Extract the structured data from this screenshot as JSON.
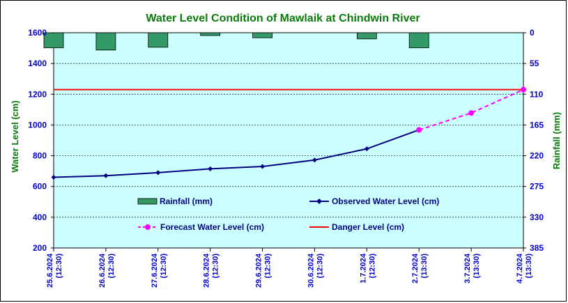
{
  "chart_data": {
    "type": "line",
    "title": "Water Level Condition of Mawlaik at Chindwin River",
    "ylabel": "Water Level (cm)",
    "y2label": "Rainfall (mm)",
    "ylim": [
      200,
      1600
    ],
    "yticks": [
      200,
      400,
      600,
      800,
      1000,
      1200,
      1400,
      1600
    ],
    "y2lim": [
      0,
      385
    ],
    "y2ticks": [
      0,
      55,
      110,
      165,
      220,
      275,
      330,
      385
    ],
    "y2_inverted": true,
    "grid": true,
    "categories": [
      [
        "25.6.2024",
        "(12:30)"
      ],
      [
        "26.6.2024",
        "(12:30)"
      ],
      [
        "27.6.2024",
        "(12:30)"
      ],
      [
        "28.6.2024",
        "(12:30)"
      ],
      [
        "29.6.2024",
        "(12:30)"
      ],
      [
        "30.6.2024",
        "(12:30)"
      ],
      [
        "1.7.2024",
        "(12:30)"
      ],
      [
        "2.7.2024",
        "(13:30)"
      ],
      [
        "3.7.2024",
        "(13:30)"
      ],
      [
        "4.7.2024",
        "(13:30)"
      ]
    ],
    "series": [
      {
        "name": "Rainfall (mm)",
        "kind": "bar",
        "axis": "right",
        "color": "#339966",
        "values": [
          27,
          31,
          26,
          5,
          9,
          null,
          11,
          27,
          null,
          null
        ]
      },
      {
        "name": "Observed Water Level (cm)",
        "kind": "line",
        "axis": "left",
        "color": "#000080",
        "values": [
          660,
          670,
          690,
          715,
          730,
          772,
          845,
          968,
          null,
          null
        ]
      },
      {
        "name": "Forecast Water Level (cm)",
        "kind": "dashed-line",
        "axis": "left",
        "color": "#ff00ff",
        "values": [
          null,
          null,
          null,
          null,
          null,
          null,
          null,
          968,
          1078,
          1230
        ]
      },
      {
        "name": "Danger Level (cm)",
        "kind": "hline",
        "axis": "left",
        "color": "#ff0000",
        "value": 1230
      }
    ],
    "colors": {
      "plot_bg": "#ccffff",
      "title": "#0a7a0a",
      "ticks": "#0000cc",
      "legend_text": "#000080"
    }
  }
}
